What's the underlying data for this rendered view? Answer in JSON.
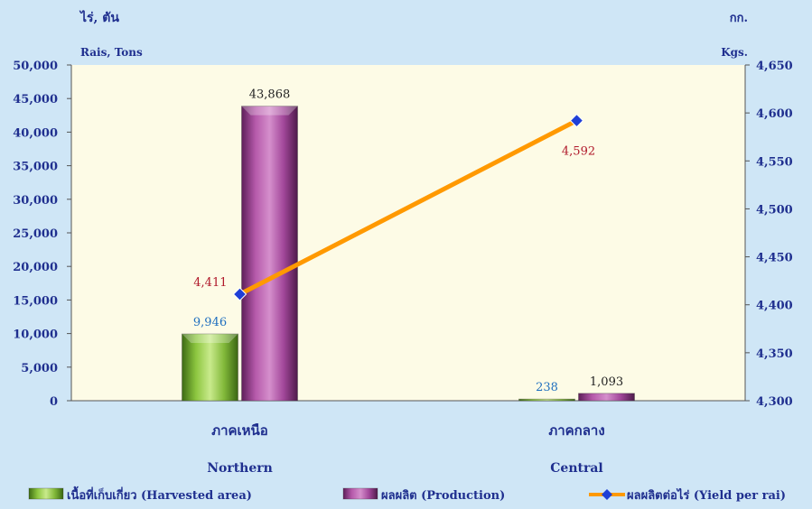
{
  "chart_data": {
    "type": "bar",
    "categories": [
      {
        "thai": "ภาคเหนือ",
        "english": "Northern"
      },
      {
        "thai": "ภาคกลาง",
        "english": "Central"
      }
    ],
    "series": [
      {
        "name": "เนื้อที่เก็บเกี่ยว (Harvested area)",
        "kind": "bar",
        "axis": "left",
        "values": [
          9946,
          238
        ],
        "labels": [
          "9,946",
          "238"
        ],
        "color": "#8cc63f",
        "label_color": "#1f6fbf"
      },
      {
        "name": "ผลผลิต (Production)",
        "kind": "bar",
        "axis": "left",
        "values": [
          43868,
          1093
        ],
        "labels": [
          "43,868",
          "1,093"
        ],
        "color": "#a7469e",
        "label_color": "#222222"
      },
      {
        "name": "ผลผลิตต่อไร่ (Yield per rai)",
        "kind": "line",
        "axis": "right",
        "values": [
          4411,
          4592
        ],
        "labels": [
          "4,411",
          "4,592"
        ],
        "color": "#ff9900",
        "marker_color": "#1f3fd6",
        "label_color": "#b0182a"
      }
    ],
    "left_axis": {
      "unit_thai": "ไร่, ตัน",
      "unit_english": "Rais,  Tons",
      "range": [
        0,
        50000
      ],
      "ticks": [
        0,
        5000,
        10000,
        15000,
        20000,
        25000,
        30000,
        35000,
        40000,
        45000,
        50000
      ],
      "tick_labels": [
        "0",
        "5,000",
        "10,000",
        "15,000",
        "20,000",
        "25,000",
        "30,000",
        "35,000",
        "40,000",
        "45,000",
        "50,000"
      ],
      "label_color": "#1f2f8f"
    },
    "right_axis": {
      "unit_thai": "กก.",
      "unit_english": "Kgs.",
      "range": [
        4300,
        4650
      ],
      "ticks": [
        4300,
        4350,
        4400,
        4450,
        4500,
        4550,
        4600,
        4650
      ],
      "tick_labels": [
        "4,300",
        "4,350",
        "4,400",
        "4,450",
        "4,500",
        "4,550",
        "4,600",
        "4,650"
      ],
      "label_color": "#1f2f8f"
    },
    "legend_position": "bottom",
    "plot_background": "#fdfbe6",
    "grid": false
  }
}
